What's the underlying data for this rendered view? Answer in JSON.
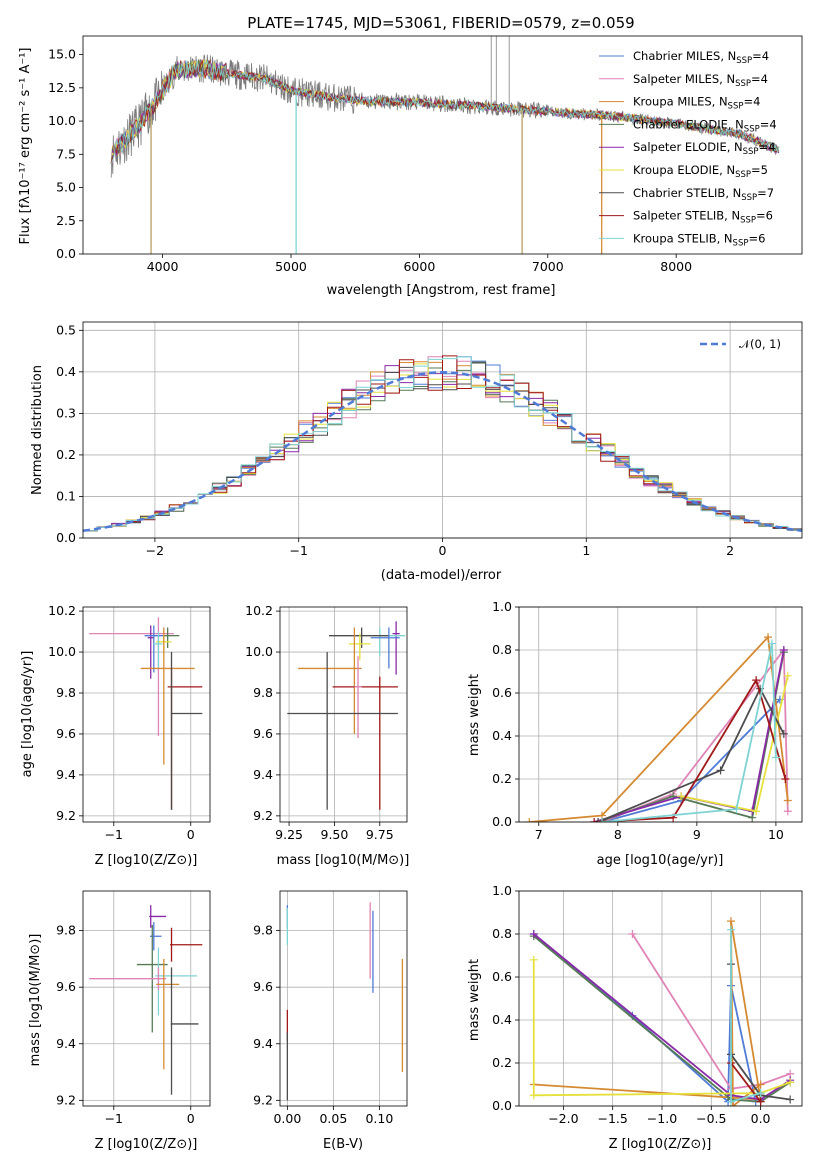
{
  "colors": [
    "#4f7bd6",
    "#e083b6",
    "#d58a32",
    "#557a55",
    "#8a2aa8",
    "#e6e03c",
    "#4d4d4d",
    "#a01818",
    "#7fd3d3"
  ],
  "chart_data": [
    {
      "id": "spectrum",
      "type": "line",
      "title": "PLATE=1745, MJD=53061, FIBERID=0579, z=0.059",
      "xlabel": "wavelength [Angstrom, rest frame]",
      "ylabel": "Flux [fλ10⁻¹⁷ erg cm⁻² s⁻¹ A⁻¹]",
      "xlim": [
        3380,
        8980
      ],
      "ylim": [
        0,
        16.4
      ],
      "xticks": [
        "4000",
        "5000",
        "6000",
        "7000",
        "8000"
      ],
      "yticks": [
        "0.0",
        "2.5",
        "5.0",
        "7.5",
        "10.0",
        "12.5",
        "15.0"
      ],
      "legend_position": "top-right",
      "legend": [
        {
          "name": "Chabrier MILES, N",
          "sub": "SSP",
          "tail": "=4"
        },
        {
          "name": "Salpeter MILES, N",
          "sub": "SSP",
          "tail": "=4"
        },
        {
          "name": "Kroupa MILES, N",
          "sub": "SSP",
          "tail": "=4"
        },
        {
          "name": "Chabrier ELODIE, N",
          "sub": "SSP",
          "tail": "=4"
        },
        {
          "name": "Salpeter ELODIE, N",
          "sub": "SSP",
          "tail": "=4"
        },
        {
          "name": "Kroupa ELODIE, N",
          "sub": "SSP",
          "tail": "=5"
        },
        {
          "name": "Chabrier STELIB, N",
          "sub": "SSP",
          "tail": "=7"
        },
        {
          "name": "Salpeter STELIB, N",
          "sub": "SSP",
          "tail": "=6"
        },
        {
          "name": "Kroupa STELIB, N",
          "sub": "SSP",
          "tail": "=6"
        }
      ],
      "continuum_x": [
        3600,
        3800,
        3950,
        4100,
        4300,
        4500,
        4800,
        5000,
        5300,
        5600,
        6000,
        6500,
        7000,
        7500,
        8000,
        8500,
        8800
      ],
      "continuum_y": [
        7.5,
        9.5,
        11.5,
        13.8,
        14.0,
        13.6,
        13.2,
        12.3,
        11.8,
        11.5,
        11.4,
        11.1,
        10.7,
        10.4,
        9.8,
        9.0,
        7.8
      ],
      "dips": [
        [
          3910,
          0
        ],
        [
          5040,
          0
        ],
        [
          6800,
          0
        ],
        [
          7420,
          0
        ]
      ],
      "spikes": [
        [
          6560,
          16.4
        ],
        [
          6600,
          16.4
        ],
        [
          6700,
          16.4
        ]
      ]
    },
    {
      "id": "residuals",
      "type": "histogram",
      "xlabel": "(data-model)/error",
      "ylabel": "Normed distribution",
      "xlim": [
        -2.5,
        2.5
      ],
      "ylim": [
        0,
        0.52
      ],
      "xticks": [
        "−2",
        "−1",
        "0",
        "1",
        "2"
      ],
      "yticks": [
        "0.0",
        "0.1",
        "0.2",
        "0.3",
        "0.4",
        "0.5"
      ],
      "legend": "𝒩(0, 1)",
      "legend_position": "top-right",
      "bin_width": 0.1
    },
    {
      "id": "age-vs-Z",
      "type": "errorbar",
      "xlabel": "Z [log10(Z/Z⊙)]",
      "ylabel": "age  [log10(age/yr)]",
      "xlim": [
        -1.4,
        0.25
      ],
      "ylim": [
        9.17,
        10.22
      ],
      "xticks": [
        "−1",
        "0"
      ],
      "yticks": [
        "9.2",
        "9.4",
        "9.6",
        "9.8",
        "10.0",
        "10.2"
      ],
      "points": [
        {
          "c": 1,
          "x": -0.42,
          "y": 10.09,
          "xerr": [
            0.9,
            0.2
          ],
          "yerr": [
            0.5,
            0.08
          ]
        },
        {
          "c": 4,
          "x": -0.52,
          "y": 10.07,
          "xerr": [
            0.04,
            0.04
          ],
          "yerr": [
            0.2,
            0.06
          ]
        },
        {
          "c": 0,
          "x": -0.48,
          "y": 10.08,
          "xerr": [
            0.12,
            0.12
          ],
          "yerr": [
            0.18,
            0.05
          ]
        },
        {
          "c": 3,
          "x": -0.3,
          "y": 10.08,
          "xerr": [
            0.05,
            0.15
          ],
          "yerr": [
            0.06,
            0.04
          ]
        },
        {
          "c": 5,
          "x": -0.35,
          "y": 10.05,
          "xerr": [
            0.1,
            0.1
          ],
          "yerr": [
            0.06,
            0.05
          ]
        },
        {
          "c": 8,
          "x": -0.42,
          "y": 10.04,
          "xerr": [
            0.06,
            0.05
          ],
          "yerr": [
            0.12,
            0.06
          ]
        },
        {
          "c": 2,
          "x": -0.35,
          "y": 9.92,
          "xerr": [
            0.3,
            0.4
          ],
          "yerr": [
            0.47,
            0.2
          ]
        },
        {
          "c": 7,
          "x": -0.25,
          "y": 9.83,
          "xerr": [
            0.05,
            0.4
          ],
          "yerr": [
            0.6,
            0.09
          ]
        },
        {
          "c": 6,
          "x": -0.25,
          "y": 9.7,
          "xerr": [
            0.01,
            0.4
          ],
          "yerr": [
            0.47,
            0.3
          ]
        }
      ]
    },
    {
      "id": "age-vs-mass",
      "type": "errorbar",
      "xlabel": "mass [log10(M/M⊙)]",
      "ylabel": "",
      "xlim": [
        9.2,
        9.9
      ],
      "ylim": [
        9.17,
        10.22
      ],
      "xticks": [
        "9.25",
        "9.50",
        "9.75"
      ],
      "yticks": [
        "9.2",
        "9.4",
        "9.6",
        "9.8",
        "10.0",
        "10.2"
      ],
      "points": [
        {
          "c": 4,
          "x": 9.84,
          "y": 10.09,
          "xerr": [
            0.02,
            0.02
          ],
          "yerr": [
            0.2,
            0.06
          ]
        },
        {
          "c": 8,
          "x": 9.75,
          "y": 10.08,
          "xerr": [
            0.01,
            0.14
          ],
          "yerr": [
            0.1,
            0.04
          ]
        },
        {
          "c": 6,
          "x": 9.65,
          "y": 10.08,
          "xerr": [
            0.18,
            0.15
          ],
          "yerr": [
            0.06,
            0.04
          ]
        },
        {
          "c": 0,
          "x": 9.8,
          "y": 10.07,
          "xerr": [
            0.1,
            0.06
          ],
          "yerr": [
            0.15,
            0.05
          ]
        },
        {
          "c": 5,
          "x": 9.64,
          "y": 10.04,
          "xerr": [
            0.06,
            0.06
          ],
          "yerr": [
            0.08,
            0.05
          ]
        },
        {
          "c": 2,
          "x": 9.61,
          "y": 9.92,
          "xerr": [
            0.31,
            0.04
          ],
          "yerr": [
            0.32,
            0.2
          ]
        },
        {
          "c": 7,
          "x": 9.75,
          "y": 9.83,
          "xerr": [
            0.26,
            0.1
          ],
          "yerr": [
            0.6,
            0.05
          ]
        },
        {
          "c": 1,
          "x": 9.63,
          "y": 9.83,
          "xerr": [
            0.02,
            0.02
          ],
          "yerr": [
            0.25,
            0.15
          ]
        },
        {
          "c": 6,
          "x": 9.46,
          "y": 9.7,
          "xerr": [
            0.22,
            0.39
          ],
          "yerr": [
            0.47,
            0.3
          ]
        }
      ]
    },
    {
      "id": "weight-vs-age",
      "type": "line",
      "xlabel": "age  [log10(age/yr)]",
      "ylabel": "mass weight",
      "xlim": [
        6.75,
        10.33
      ],
      "ylim": [
        0,
        1.0
      ],
      "xticks": [
        "7",
        "8",
        "9",
        "10"
      ],
      "yticks": [
        "0.0",
        "0.2",
        "0.4",
        "0.6",
        "0.8",
        "1.0"
      ],
      "series": [
        {
          "c": 0,
          "x": [
            7.8,
            8.8,
            10.05
          ],
          "y": [
            0.0,
            0.1,
            0.57
          ]
        },
        {
          "c": 1,
          "x": [
            7.8,
            8.7,
            10.1,
            10.15
          ],
          "y": [
            0.0,
            0.13,
            0.8,
            0.05
          ]
        },
        {
          "c": 2,
          "x": [
            6.88,
            7.8,
            9.9,
            10.15
          ],
          "y": [
            0.0,
            0.03,
            0.86,
            0.1
          ]
        },
        {
          "c": 3,
          "x": [
            7.75,
            8.7,
            9.7,
            10.1
          ],
          "y": [
            0.0,
            0.12,
            0.02,
            0.79
          ]
        },
        {
          "c": 4,
          "x": [
            7.7,
            8.8,
            9.7,
            10.1
          ],
          "y": [
            0.0,
            0.12,
            0.05,
            0.8
          ]
        },
        {
          "c": 5,
          "x": [
            8.8,
            9.75,
            10.15
          ],
          "y": [
            0.12,
            0.05,
            0.68
          ]
        },
        {
          "c": 6,
          "x": [
            7.75,
            9.3,
            9.8,
            10.1
          ],
          "y": [
            0.0,
            0.24,
            0.62,
            0.41
          ]
        },
        {
          "c": 7,
          "x": [
            7.7,
            8.7,
            9.75,
            10.12
          ],
          "y": [
            0.0,
            0.02,
            0.66,
            0.2
          ]
        },
        {
          "c": 8,
          "x": [
            7.8,
            9.5,
            9.95,
            10.0
          ],
          "y": [
            0.0,
            0.06,
            0.83,
            0.3
          ]
        }
      ]
    },
    {
      "id": "mass-vs-Z",
      "type": "errorbar",
      "xlabel": "Z [log10(Z/Z⊙)]",
      "ylabel": "mass [log10(M/M⊙)]",
      "xlim": [
        -1.4,
        0.25
      ],
      "ylim": [
        9.18,
        9.94
      ],
      "xticks": [
        "−1",
        "0"
      ],
      "yticks": [
        "9.2",
        "9.4",
        "9.6",
        "9.8"
      ],
      "points": [
        {
          "c": 4,
          "x": -0.52,
          "y": 9.85,
          "xerr": [
            0.02,
            0.2
          ],
          "yerr": [
            0.04,
            0.04
          ]
        },
        {
          "c": 0,
          "x": -0.48,
          "y": 9.78,
          "xerr": [
            0.05,
            0.1
          ],
          "yerr": [
            0.05,
            0.05
          ]
        },
        {
          "c": 7,
          "x": -0.25,
          "y": 9.75,
          "xerr": [
            0.02,
            0.4
          ],
          "yerr": [
            0.06,
            0.06
          ]
        },
        {
          "c": 3,
          "x": -0.5,
          "y": 9.68,
          "xerr": [
            0.2,
            0.2
          ],
          "yerr": [
            0.24,
            0.14
          ]
        },
        {
          "c": 8,
          "x": -0.42,
          "y": 9.64,
          "xerr": [
            0.04,
            0.5
          ],
          "yerr": [
            0.14,
            0.1
          ]
        },
        {
          "c": 1,
          "x": -0.42,
          "y": 9.63,
          "xerr": [
            0.9,
            0.1
          ],
          "yerr": [
            0.04,
            0.04
          ]
        },
        {
          "c": 2,
          "x": -0.35,
          "y": 9.61,
          "xerr": [
            0.1,
            0.2
          ],
          "yerr": [
            0.3,
            0.09
          ]
        },
        {
          "c": 6,
          "x": -0.25,
          "y": 9.47,
          "xerr": [
            0.01,
            0.35
          ],
          "yerr": [
            0.25,
            0.2
          ]
        }
      ]
    },
    {
      "id": "mass-vs-EBV",
      "type": "errorbar",
      "xlabel": "E(B-V)",
      "ylabel": "",
      "xlim": [
        -0.008,
        0.13
      ],
      "ylim": [
        9.18,
        9.94
      ],
      "xticks": [
        "0.00",
        "0.05",
        "0.10"
      ],
      "yticks": [
        "9.2",
        "9.4",
        "9.6",
        "9.8"
      ],
      "points": [
        {
          "c": 0,
          "x": 0.0,
          "y": 9.85,
          "xerr": [
            0,
            0
          ],
          "yerr": [
            0.04,
            0.04
          ]
        },
        {
          "c": 8,
          "x": 0.0,
          "y": 9.8,
          "xerr": [
            0,
            0
          ],
          "yerr": [
            0.05,
            0.08
          ]
        },
        {
          "c": 7,
          "x": 0.0,
          "y": 9.47,
          "xerr": [
            0,
            0
          ],
          "yerr": [
            0.06,
            0.05
          ]
        },
        {
          "c": 6,
          "x": 0.0,
          "y": 9.37,
          "xerr": [
            0,
            0
          ],
          "yerr": [
            0.17,
            0.07
          ]
        },
        {
          "c": 1,
          "x": 0.09,
          "y": 9.8,
          "xerr": [
            0,
            0
          ],
          "yerr": [
            0.17,
            0.1
          ]
        },
        {
          "c": 0,
          "x": 0.093,
          "y": 9.73,
          "xerr": [
            0,
            0
          ],
          "yerr": [
            0.15,
            0.14
          ]
        },
        {
          "c": 2,
          "x": 0.125,
          "y": 9.5,
          "xerr": [
            0,
            0
          ],
          "yerr": [
            0.2,
            0.2
          ]
        }
      ]
    },
    {
      "id": "weight-vs-Z",
      "type": "line",
      "xlabel": "Z [log10(Z/Z⊙)]",
      "ylabel": "mass weight",
      "xlim": [
        -2.45,
        0.42
      ],
      "ylim": [
        0,
        1.0
      ],
      "xticks": [
        "−2.0",
        "−1.5",
        "−1.0",
        "−0.5",
        "0.0"
      ],
      "yticks": [
        "0.0",
        "0.2",
        "0.4",
        "0.6",
        "0.8",
        "1.0"
      ],
      "series": [
        {
          "c": 0,
          "x": [
            -2.3,
            -1.3,
            -0.33,
            -0.3,
            -0.05
          ],
          "y": [
            0.8,
            0.42,
            0.02,
            0.56,
            0.02
          ]
        },
        {
          "c": 1,
          "x": [
            -1.3,
            -0.3,
            0.0,
            0.3
          ],
          "y": [
            0.8,
            0.08,
            0.1,
            0.15
          ]
        },
        {
          "c": 2,
          "x": [
            -2.3,
            0.0,
            -0.3,
            -0.28,
            0.0
          ],
          "y": [
            0.1,
            0.03,
            0.86,
            0.0,
            0.1
          ]
        },
        {
          "c": 3,
          "x": [
            -2.3,
            -0.3,
            0.0,
            0.3
          ],
          "y": [
            0.79,
            0.03,
            0.02,
            0.11
          ]
        },
        {
          "c": 4,
          "x": [
            -2.3,
            -0.3,
            0.0,
            0.3
          ],
          "y": [
            0.8,
            0.05,
            0.03,
            0.12
          ]
        },
        {
          "c": 5,
          "x": [
            -2.3,
            -2.3,
            0.0,
            0.3
          ],
          "y": [
            0.68,
            0.05,
            0.06,
            0.11
          ]
        },
        {
          "c": 6,
          "x": [
            -0.3,
            -0.3,
            0.0,
            0.3
          ],
          "y": [
            0.66,
            0.24,
            0.05,
            0.03
          ]
        },
        {
          "c": 7,
          "x": [
            -0.3,
            0.0
          ],
          "y": [
            0.2,
            0.02
          ]
        },
        {
          "c": 8,
          "x": [
            -0.3,
            -0.3,
            0.0
          ],
          "y": [
            0.82,
            0.02,
            0.06
          ]
        }
      ]
    }
  ]
}
